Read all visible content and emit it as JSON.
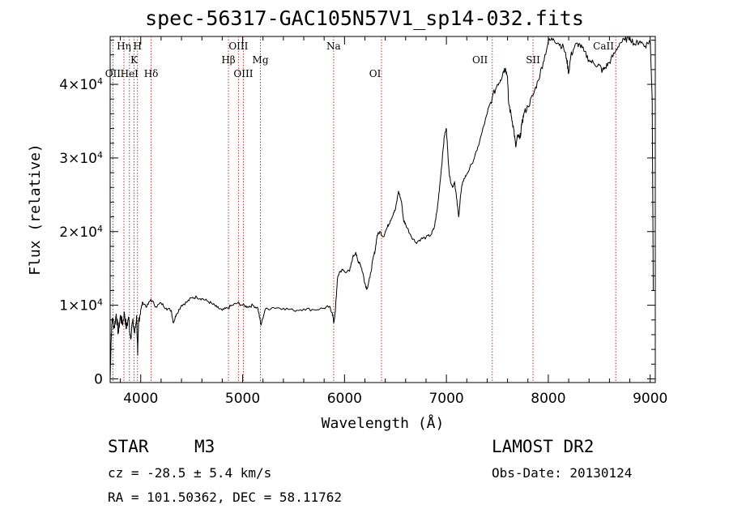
{
  "info": {
    "object_class": "STAR",
    "subclass": "M3",
    "survey": "LAMOST DR2",
    "redshift_text": "cz = -28.5 ± 5.4 km/s",
    "obs_date": "Obs-Date: 20130124",
    "coords": "RA = 101.50362, DEC =  58.11762"
  },
  "chart_data": {
    "type": "line",
    "title": "spec-56317-GAC105N57V1_sp14-032.fits",
    "xlabel": "Wavelength (Å)",
    "ylabel": "Flux (relative)",
    "xlim": [
      3700,
      9050
    ],
    "ylim": [
      -500,
      46500
    ],
    "x_ticks": [
      4000,
      5000,
      6000,
      7000,
      8000,
      9000
    ],
    "y_ticks": [
      {
        "value": 0,
        "base": "0",
        "exp": ""
      },
      {
        "value": 10000,
        "base": "1×10",
        "exp": "4"
      },
      {
        "value": 20000,
        "base": "2×10",
        "exp": "4"
      },
      {
        "value": 30000,
        "base": "3×10",
        "exp": "4"
      },
      {
        "value": 40000,
        "base": "4×10",
        "exp": "4"
      }
    ],
    "grid": false,
    "series": [
      {
        "color": "#000000",
        "points": [
          [
            3700,
            0
          ],
          [
            3710,
            5500
          ],
          [
            3720,
            8200
          ],
          [
            3740,
            7000
          ],
          [
            3760,
            8800
          ],
          [
            3780,
            6200
          ],
          [
            3800,
            8600
          ],
          [
            3820,
            7400
          ],
          [
            3840,
            9000
          ],
          [
            3860,
            6800
          ],
          [
            3880,
            8400
          ],
          [
            3900,
            5600
          ],
          [
            3920,
            7800
          ],
          [
            3940,
            6200
          ],
          [
            3960,
            8600
          ],
          [
            3970,
            3200
          ],
          [
            3980,
            8000
          ],
          [
            4000,
            9400
          ],
          [
            4020,
            10400
          ],
          [
            4060,
            9800
          ],
          [
            4100,
            10800
          ],
          [
            4150,
            9800
          ],
          [
            4200,
            10300
          ],
          [
            4250,
            9600
          ],
          [
            4300,
            9300
          ],
          [
            4320,
            7600
          ],
          [
            4350,
            8800
          ],
          [
            4400,
            10000
          ],
          [
            4450,
            10400
          ],
          [
            4500,
            11000
          ],
          [
            4550,
            11100
          ],
          [
            4600,
            10900
          ],
          [
            4650,
            10600
          ],
          [
            4700,
            10200
          ],
          [
            4750,
            9700
          ],
          [
            4800,
            9300
          ],
          [
            4850,
            9600
          ],
          [
            4900,
            10000
          ],
          [
            4950,
            10300
          ],
          [
            5000,
            10000
          ],
          [
            5050,
            9800
          ],
          [
            5100,
            10000
          ],
          [
            5150,
            9600
          ],
          [
            5180,
            7300
          ],
          [
            5220,
            9400
          ],
          [
            5300,
            9700
          ],
          [
            5400,
            9600
          ],
          [
            5500,
            9300
          ],
          [
            5600,
            9500
          ],
          [
            5700,
            9400
          ],
          [
            5800,
            9600
          ],
          [
            5850,
            9800
          ],
          [
            5880,
            9000
          ],
          [
            5895,
            7600
          ],
          [
            5910,
            9200
          ],
          [
            5930,
            13500
          ],
          [
            5950,
            14500
          ],
          [
            5980,
            14800
          ],
          [
            6000,
            14600
          ],
          [
            6050,
            14600
          ],
          [
            6080,
            16500
          ],
          [
            6110,
            17200
          ],
          [
            6130,
            16000
          ],
          [
            6150,
            15800
          ],
          [
            6180,
            14400
          ],
          [
            6200,
            13000
          ],
          [
            6220,
            12200
          ],
          [
            6250,
            13800
          ],
          [
            6280,
            16300
          ],
          [
            6300,
            17400
          ],
          [
            6320,
            19500
          ],
          [
            6350,
            20000
          ],
          [
            6380,
            19300
          ],
          [
            6420,
            20600
          ],
          [
            6450,
            21500
          ],
          [
            6480,
            22500
          ],
          [
            6500,
            23000
          ],
          [
            6530,
            25500
          ],
          [
            6560,
            24000
          ],
          [
            6580,
            21500
          ],
          [
            6600,
            21000
          ],
          [
            6650,
            19500
          ],
          [
            6700,
            18500
          ],
          [
            6750,
            19000
          ],
          [
            6800,
            19200
          ],
          [
            6850,
            19600
          ],
          [
            6880,
            20500
          ],
          [
            6910,
            23000
          ],
          [
            6940,
            27000
          ],
          [
            6960,
            30000
          ],
          [
            6980,
            33000
          ],
          [
            7000,
            34000
          ],
          [
            7010,
            31500
          ],
          [
            7030,
            27500
          ],
          [
            7060,
            26000
          ],
          [
            7080,
            26800
          ],
          [
            7100,
            24500
          ],
          [
            7120,
            22000
          ],
          [
            7140,
            25000
          ],
          [
            7160,
            26800
          ],
          [
            7200,
            27800
          ],
          [
            7250,
            29200
          ],
          [
            7300,
            31000
          ],
          [
            7350,
            33500
          ],
          [
            7400,
            36000
          ],
          [
            7450,
            38200
          ],
          [
            7500,
            40000
          ],
          [
            7530,
            40600
          ],
          [
            7560,
            41800
          ],
          [
            7580,
            42200
          ],
          [
            7600,
            41000
          ],
          [
            7610,
            37500
          ],
          [
            7640,
            35500
          ],
          [
            7660,
            34000
          ],
          [
            7680,
            31500
          ],
          [
            7700,
            33000
          ],
          [
            7720,
            32600
          ],
          [
            7740,
            34500
          ],
          [
            7760,
            36000
          ],
          [
            7800,
            37000
          ],
          [
            7850,
            38500
          ],
          [
            7900,
            40500
          ],
          [
            7950,
            43000
          ],
          [
            8000,
            45800
          ],
          [
            8050,
            46200
          ],
          [
            8100,
            45600
          ],
          [
            8150,
            45000
          ],
          [
            8180,
            43500
          ],
          [
            8200,
            41500
          ],
          [
            8220,
            43800
          ],
          [
            8260,
            45200
          ],
          [
            8300,
            45500
          ],
          [
            8350,
            44500
          ],
          [
            8400,
            43300
          ],
          [
            8450,
            42800
          ],
          [
            8500,
            42600
          ],
          [
            8530,
            41800
          ],
          [
            8560,
            42300
          ],
          [
            8600,
            43000
          ],
          [
            8650,
            44200
          ],
          [
            8700,
            45600
          ],
          [
            8750,
            46000
          ],
          [
            8800,
            46400
          ],
          [
            8850,
            45400
          ],
          [
            8900,
            45900
          ],
          [
            8950,
            45200
          ],
          [
            9000,
            46000
          ],
          [
            9020,
            38000
          ],
          [
            9030,
            12000
          ]
        ]
      }
    ],
    "lines_top": [
      {
        "label": "Hη",
        "x": 3835,
        "row": 1
      },
      {
        "label": "H",
        "x": 3968,
        "row": 1
      },
      {
        "label": "OIII",
        "x": 4959,
        "row": 1
      },
      {
        "label": "Na",
        "x": 5893,
        "row": 1
      },
      {
        "label": "K",
        "x": 3934,
        "row": 2
      },
      {
        "label": "Hβ",
        "x": 4861,
        "row": 2
      },
      {
        "label": "Mg",
        "x": 5175,
        "row": 2
      },
      {
        "label": "OII",
        "x": 7330,
        "row": 2
      },
      {
        "label": "SII",
        "x": 7850,
        "row": 2
      },
      {
        "label": "CaII",
        "x": 8542,
        "row": 1
      },
      {
        "label": "OII",
        "x": 3727,
        "row": 3
      },
      {
        "label": "HeI",
        "x": 3889,
        "row": 3
      },
      {
        "label": "Hδ",
        "x": 4102,
        "row": 3
      },
      {
        "label": "OIII",
        "x": 5007,
        "row": 3
      },
      {
        "label": "OI",
        "x": 6300,
        "row": 3
      }
    ],
    "line_marks": [
      3727,
      3835,
      3889,
      3934,
      3968,
      4102,
      4861,
      4959,
      5007,
      5175,
      5893,
      6363,
      7450,
      7850,
      8662
    ]
  }
}
